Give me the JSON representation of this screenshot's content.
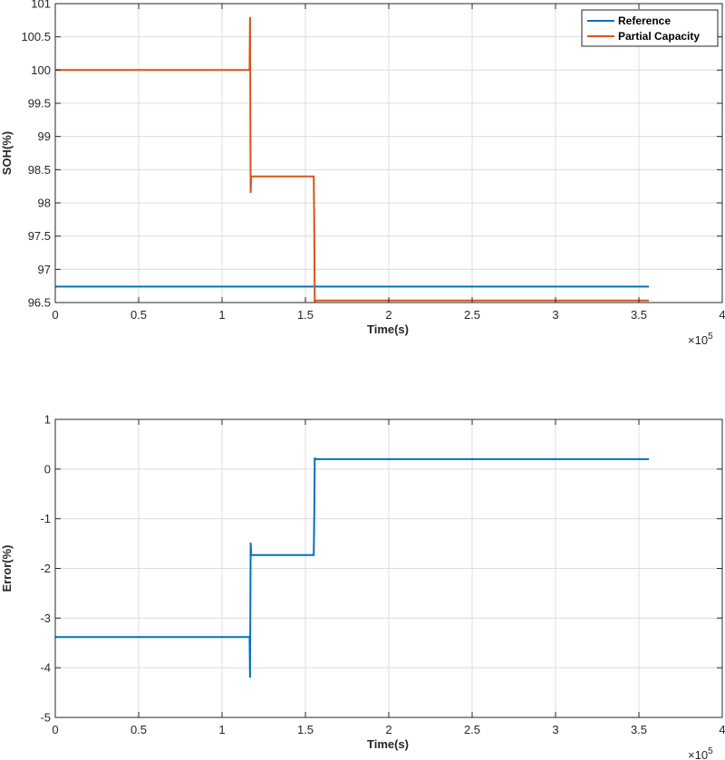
{
  "chart_data": [
    {
      "type": "line",
      "xlabel": "Time(s)",
      "ylabel": "SOH(%)",
      "x_multiplier": "×10",
      "x_exponent": "5",
      "xlim": [
        0,
        4
      ],
      "ylim": [
        96.5,
        101
      ],
      "xticks": [
        "0",
        "0.5",
        "1",
        "1.5",
        "2",
        "2.5",
        "3",
        "3.5",
        "4"
      ],
      "yticks": [
        "96.5",
        "97",
        "97.5",
        "98",
        "98.5",
        "99",
        "99.5",
        "100",
        "100.5",
        "101"
      ],
      "grid": true,
      "legend_position": "top-right",
      "series": [
        {
          "name": "Reference",
          "color": "#0072BD",
          "x": [
            0,
            3.56
          ],
          "y": [
            96.74,
            96.74
          ]
        },
        {
          "name": "Partial Capacity",
          "color": "#D95319",
          "x": [
            0,
            1.165,
            1.168,
            1.172,
            1.175,
            1.178,
            1.18,
            1.55,
            1.553,
            1.556,
            1.559,
            1.562,
            3.56
          ],
          "y": [
            100.0,
            100.0,
            100.8,
            98.15,
            98.4,
            98.4,
            98.4,
            98.4,
            97.6,
            96.5,
            96.53,
            96.53,
            96.53
          ]
        }
      ]
    },
    {
      "type": "line",
      "xlabel": "Time(s)",
      "ylabel": "Error(%)",
      "x_multiplier": "×10",
      "x_exponent": "5",
      "xlim": [
        0,
        4
      ],
      "ylim": [
        -5,
        1
      ],
      "xticks": [
        "0",
        "0.5",
        "1",
        "1.5",
        "2",
        "2.5",
        "3",
        "3.5",
        "4"
      ],
      "yticks": [
        "-5",
        "-4",
        "-3",
        "-2",
        "-1",
        "0",
        "1"
      ],
      "grid": true,
      "series": [
        {
          "color": "#0072BD",
          "x": [
            0,
            1.165,
            1.168,
            1.172,
            1.175,
            1.178,
            1.18,
            1.55,
            1.553,
            1.556,
            1.559,
            1.562,
            3.56
          ],
          "y": [
            -3.38,
            -3.38,
            -4.2,
            -1.48,
            -1.73,
            -1.73,
            -1.73,
            -1.73,
            -0.9,
            0.23,
            0.2,
            0.2,
            0.2
          ]
        }
      ]
    }
  ]
}
